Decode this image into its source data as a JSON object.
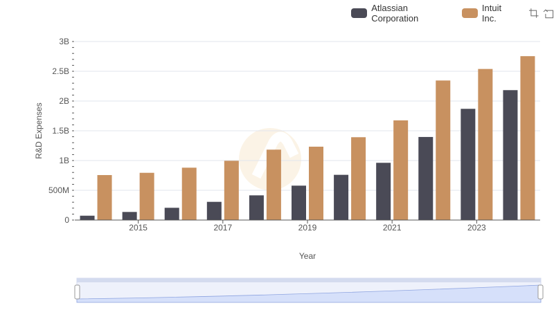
{
  "chart_data": {
    "type": "bar",
    "title": "",
    "xlabel": "Year",
    "ylabel": "R&D Expenses",
    "categories": [
      "2014",
      "2015",
      "2016",
      "2017",
      "2018",
      "2019",
      "2020",
      "2021",
      "2022",
      "2023",
      "2024"
    ],
    "x_tick_labels": [
      "2015",
      "2017",
      "2019",
      "2021",
      "2023"
    ],
    "y_tick_labels": [
      "0",
      "500M",
      "1B",
      "1.5B",
      "2B",
      "2.5B",
      "3B"
    ],
    "ylim": [
      0,
      3000000000
    ],
    "grid": true,
    "legend_position": "top-right",
    "series": [
      {
        "name": "Atlassian Corporation",
        "color": "#4a4a56",
        "values": [
          73000000,
          136000000,
          206000000,
          306000000,
          415000000,
          578000000,
          760000000,
          962000000,
          1396000000,
          1869000000,
          2183000000
        ]
      },
      {
        "name": "Intuit Inc.",
        "color": "#c89160",
        "values": [
          756000000,
          794000000,
          880000000,
          996000000,
          1183000000,
          1233000000,
          1392000000,
          1675000000,
          2345000000,
          2539000000,
          2754000000
        ]
      }
    ]
  },
  "toolbar": {
    "zoom_icon": "zoom-select-icon",
    "reset_icon": "zoom-reset-icon"
  }
}
